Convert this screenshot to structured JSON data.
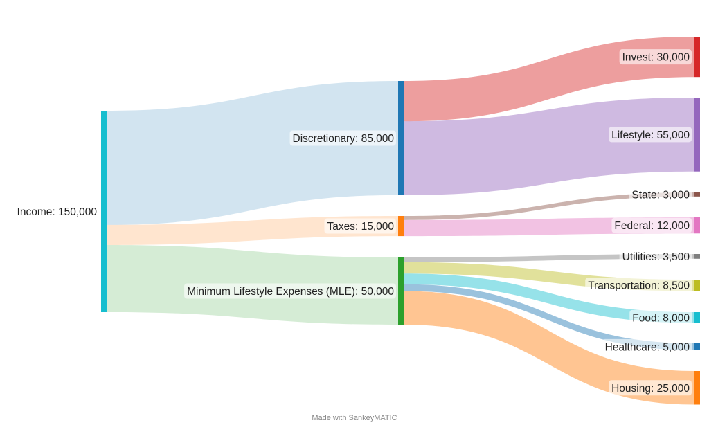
{
  "footer": "Made with SankeyMATIC",
  "chart_data": {
    "type": "sankey",
    "nodes": [
      {
        "id": "income",
        "name": "Income",
        "value": 150000,
        "label": "Income: 150,000",
        "color": "#17becf"
      },
      {
        "id": "discretionary",
        "name": "Discretionary",
        "value": 85000,
        "label": "Discretionary: 85,000",
        "color": "#1f77b4"
      },
      {
        "id": "taxes",
        "name": "Taxes",
        "value": 15000,
        "label": "Taxes: 15,000",
        "color": "#ff7f0e"
      },
      {
        "id": "mle",
        "name": "Minimum Lifestyle Expenses (MLE)",
        "value": 50000,
        "label": "Minimum Lifestyle Expenses (MLE): 50,000",
        "color": "#2ca02c"
      },
      {
        "id": "invest",
        "name": "Invest",
        "value": 30000,
        "label": "Invest: 30,000",
        "color": "#d62728"
      },
      {
        "id": "lifestyle",
        "name": "Lifestyle",
        "value": 55000,
        "label": "Lifestyle: 55,000",
        "color": "#9467bd"
      },
      {
        "id": "state",
        "name": "State",
        "value": 3000,
        "label": "State: 3,000",
        "color": "#8c564b"
      },
      {
        "id": "federal",
        "name": "Federal",
        "value": 12000,
        "label": "Federal: 12,000",
        "color": "#e377c2"
      },
      {
        "id": "utilities",
        "name": "Utilities",
        "value": 3500,
        "label": "Utilities: 3,500",
        "color": "#7f7f7f"
      },
      {
        "id": "transportation",
        "name": "Transportation",
        "value": 8500,
        "label": "Transportation: 8,500",
        "color": "#bcbd22"
      },
      {
        "id": "food",
        "name": "Food",
        "value": 8000,
        "label": "Food: 8,000",
        "color": "#17becf"
      },
      {
        "id": "healthcare",
        "name": "Healthcare",
        "value": 5000,
        "label": "Healthcare: 5,000",
        "color": "#1f77b4"
      },
      {
        "id": "housing",
        "name": "Housing",
        "value": 25000,
        "label": "Housing: 25,000",
        "color": "#ff7f0e"
      }
    ],
    "links": [
      {
        "source": "income",
        "target": "discretionary",
        "value": 85000
      },
      {
        "source": "income",
        "target": "taxes",
        "value": 15000
      },
      {
        "source": "income",
        "target": "mle",
        "value": 50000
      },
      {
        "source": "discretionary",
        "target": "invest",
        "value": 30000
      },
      {
        "source": "discretionary",
        "target": "lifestyle",
        "value": 55000
      },
      {
        "source": "taxes",
        "target": "state",
        "value": 3000
      },
      {
        "source": "taxes",
        "target": "federal",
        "value": 12000
      },
      {
        "source": "mle",
        "target": "utilities",
        "value": 3500
      },
      {
        "source": "mle",
        "target": "transportation",
        "value": 8500
      },
      {
        "source": "mle",
        "target": "food",
        "value": 8000
      },
      {
        "source": "mle",
        "target": "healthcare",
        "value": 5000
      },
      {
        "source": "mle",
        "target": "housing",
        "value": 25000
      }
    ]
  }
}
